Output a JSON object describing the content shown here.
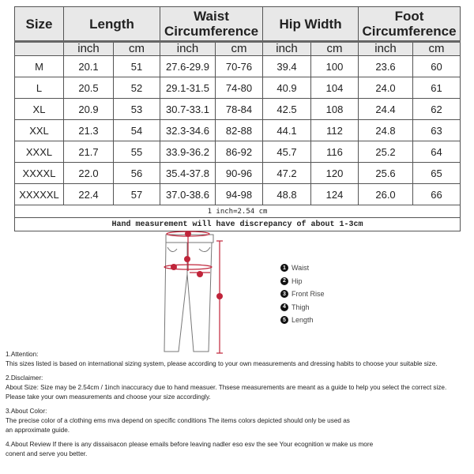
{
  "table": {
    "headers": [
      "Size",
      "Length",
      "Waist Circumference",
      "Hip Width",
      "Foot Circumference"
    ],
    "units": [
      "inch",
      "cm",
      "inch",
      "cm",
      "inch",
      "cm",
      "inch",
      "cm"
    ],
    "rows": [
      [
        "M",
        "20.1",
        "51",
        "27.6-29.9",
        "70-76",
        "39.4",
        "100",
        "23.6",
        "60"
      ],
      [
        "L",
        "20.5",
        "52",
        "29.1-31.5",
        "74-80",
        "40.9",
        "104",
        "24.0",
        "61"
      ],
      [
        "XL",
        "20.9",
        "53",
        "30.7-33.1",
        "78-84",
        "42.5",
        "108",
        "24.4",
        "62"
      ],
      [
        "XXL",
        "21.3",
        "54",
        "32.3-34.6",
        "82-88",
        "44.1",
        "112",
        "24.8",
        "63"
      ],
      [
        "XXXL",
        "21.7",
        "55",
        "33.9-36.2",
        "86-92",
        "45.7",
        "116",
        "25.2",
        "64"
      ],
      [
        "XXXXL",
        "22.0",
        "56",
        "35.4-37.8",
        "90-96",
        "47.2",
        "120",
        "25.6",
        "65"
      ],
      [
        "XXXXXL",
        "22.4",
        "57",
        "37.0-38.6",
        "94-98",
        "48.8",
        "124",
        "26.0",
        "66"
      ]
    ],
    "conversion": "1 inch=2.54 cm",
    "note": "Hand measurement will have discrepancy of about 1-3cm"
  },
  "legend": [
    {
      "n": "1",
      "label": "Waist"
    },
    {
      "n": "2",
      "label": "Hip"
    },
    {
      "n": "3",
      "label": "Front Rise"
    },
    {
      "n": "4",
      "label": "Thigh"
    },
    {
      "n": "5",
      "label": "Length"
    }
  ],
  "notes": [
    {
      "title": "1.Attention:",
      "lines": [
        "This sizes listed is based on international sizing system, please according to your own measurements and dressing habits to choose your suitable size."
      ]
    },
    {
      "title": "2.Disclaimer:",
      "lines": [
        "About Size: Size may be 2.54cm / 1inch inaccuracy due to hand measuer. Thsese measurements are meant as a guide to help you select the correct size.",
        "Please take your own measurements and choose your size accordingly."
      ]
    },
    {
      "title": "3.About Color:",
      "lines": [
        "The precise color of a clothing ems mva depend on specific conditions The items colors depicted should only be used as",
        "an approximate guide."
      ]
    },
    {
      "title": "",
      "lines": [
        "4.About Review If there is any dissaisacon please emails before leaving nadler eso esv the see Your ecognition w make us more",
        "conent and serve you better."
      ]
    }
  ],
  "colors": {
    "marker": "#c0243a",
    "header_bg": "#e8e8e8"
  }
}
